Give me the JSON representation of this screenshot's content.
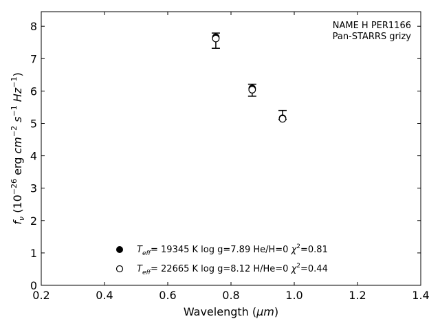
{
  "chart_data": {
    "type": "scatter",
    "xlabel": "Wavelength (",
    "xlabel_unit": "μm",
    "xlabel_close": ")",
    "ylabel_parts": {
      "f": "f",
      "nu": "ν",
      "open": " (10",
      "exp26": "−26",
      "erg": " erg ",
      "cm": "cm",
      "exp2": "−2",
      "s": " s",
      "exp1a": "−1",
      "hz": " Hz",
      "exp1b": "−1",
      "close": ")"
    },
    "xlim": [
      0.2,
      1.4
    ],
    "ylim": [
      0,
      8.45
    ],
    "xticks": [
      0.2,
      0.4,
      0.6,
      0.8,
      1.0,
      1.2,
      1.4
    ],
    "xtick_labels": [
      "0.2",
      "0.4",
      "0.6",
      "0.8",
      "1.0",
      "1.2",
      "1.4"
    ],
    "yticks": [
      0,
      1,
      2,
      3,
      4,
      5,
      6,
      7,
      8
    ],
    "ytick_labels": [
      "0",
      "1",
      "2",
      "3",
      "4",
      "5",
      "6",
      "7",
      "8"
    ],
    "grid": false,
    "legend_position": "bottom-center",
    "annotation": {
      "line1": "NAME H PER1166",
      "line2": "Pan-STARRS grizy"
    },
    "observed": {
      "x": [
        0.752,
        0.867,
        0.963
      ],
      "y": [
        7.55,
        6.02,
        5.25
      ],
      "yerr_low": [
        7.32,
        5.84,
        5.12
      ],
      "yerr_high": [
        7.79,
        6.21,
        5.4
      ]
    },
    "series": [
      {
        "name_parts": {
          "t": "T",
          "sub": "eff",
          "rest": "= 19345 K  log g=7.89  He/H=0  ",
          "chi": "χ",
          "sup": "2",
          "val": "=0.81"
        },
        "marker": "filled-circle",
        "x": [
          0.752,
          0.867,
          0.963
        ],
        "y": [
          7.66,
          6.08,
          5.16
        ]
      },
      {
        "name_parts": {
          "t": "T",
          "sub": "eff",
          "rest": "= 22665 K  log g=8.12  H/He=0  ",
          "chi": "χ",
          "sup": "2",
          "val": "=0.44"
        },
        "marker": "open-circle",
        "x": [
          0.752,
          0.867,
          0.963
        ],
        "y": [
          7.62,
          6.04,
          5.14
        ]
      }
    ],
    "colors": {
      "axes": "#000000",
      "marker": "#000000",
      "background": "#ffffff"
    }
  }
}
